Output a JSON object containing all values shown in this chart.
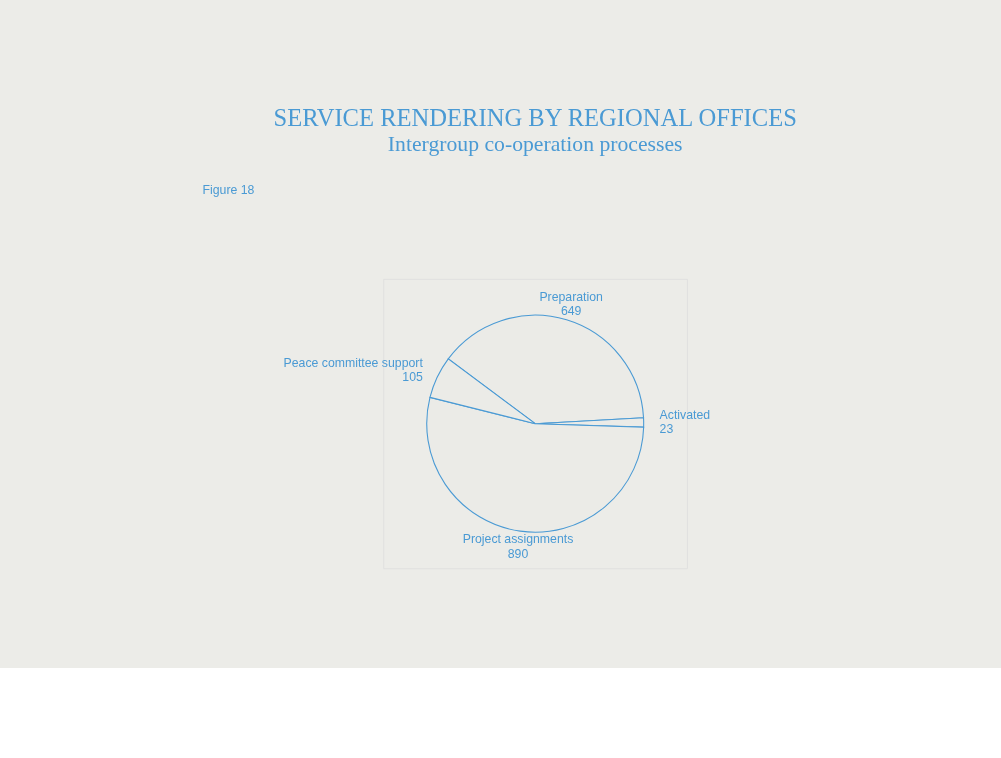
{
  "chart_data": {
    "type": "pie",
    "title": "SERVICE RENDERING BY REGIONAL OFFICES",
    "subtitle": "Intergroup co-operation processes",
    "annotations": [
      "Figure 18"
    ],
    "categories": [
      "Preparation",
      "Activated",
      "Project assignments",
      "Peace committee support"
    ],
    "values": [
      649,
      23,
      890,
      105
    ],
    "colors": [
      "#ebebe7",
      "#ebebe7",
      "#ebebe7",
      "#ebebe7"
    ],
    "data_labels": true,
    "legend": false
  }
}
